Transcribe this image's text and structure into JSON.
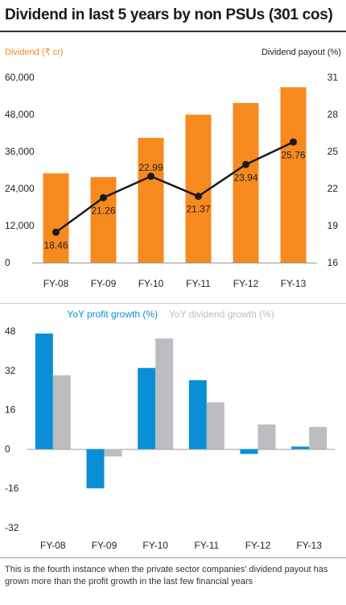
{
  "title": "Dividend in last 5 years by non PSUs (301 cos)",
  "footnote": "This is the fourth instance when the private sector companies' dividend payout has grown more than the profit growth in the last few financial years",
  "colors": {
    "orange": "#f68a1f",
    "blue": "#0a8fd6",
    "gray": "#bcbdc0",
    "line": "#1a1a1a"
  },
  "chart_data": [
    {
      "type": "bar",
      "categories": [
        "FY-08",
        "FY-09",
        "FY-10",
        "FY-11",
        "FY-12",
        "FY-13"
      ],
      "series": [
        {
          "name": "Dividend (₹ cr)",
          "axis": "left",
          "kind": "bar",
          "values": [
            28900,
            27700,
            40400,
            47900,
            51700,
            56800
          ]
        },
        {
          "name": "Dividend payout (%)",
          "axis": "right",
          "kind": "line",
          "values": [
            18.46,
            21.26,
            22.99,
            21.37,
            23.94,
            25.76
          ]
        }
      ],
      "left_axis": {
        "label": "Dividend (₹ cr)",
        "ylim": [
          0,
          60000
        ],
        "ticks": [
          "60,000",
          "48,000",
          "36,000",
          "24,000",
          "12,000",
          "0"
        ],
        "tick_values": [
          60000,
          48000,
          36000,
          24000,
          12000,
          0
        ]
      },
      "right_axis": {
        "label": "Dividend payout (%)",
        "ylim": [
          16,
          31
        ],
        "ticks": [
          "31",
          "28",
          "25",
          "22",
          "19",
          "16"
        ],
        "tick_values": [
          31,
          28,
          25,
          22,
          19,
          16
        ]
      },
      "data_labels": [
        "18.46",
        "21.26",
        "22.99",
        "21.37",
        "23.94",
        "25.76"
      ]
    },
    {
      "type": "bar",
      "categories": [
        "FY-08",
        "FY-09",
        "FY-10",
        "FY-11",
        "FY-12",
        "FY-13"
      ],
      "series": [
        {
          "name": "YoY profit growth (%)",
          "values": [
            47,
            -16,
            33,
            28,
            -2,
            1
          ]
        },
        {
          "name": "YoY dividend growth (%)",
          "values": [
            30,
            -3,
            45,
            19,
            10,
            9
          ]
        }
      ],
      "ylim": [
        -32,
        48
      ],
      "ticks": [
        "48",
        "32",
        "16",
        "0",
        "-16",
        "-32"
      ],
      "tick_values": [
        48,
        32,
        16,
        0,
        -16,
        -32
      ],
      "legend_placement": "top"
    }
  ]
}
